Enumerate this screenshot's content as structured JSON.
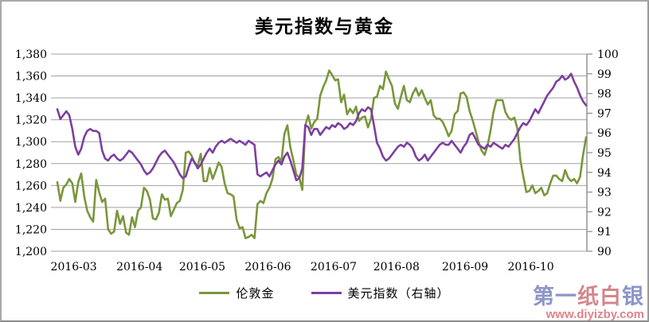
{
  "title": "美元指数与黄金",
  "legend": {
    "items": [
      {
        "label": "伦敦金",
        "color": "#7A963C"
      },
      {
        "label": "美元指数（右轴）",
        "color": "#7D3F9E"
      }
    ]
  },
  "watermark": {
    "brand_chars": [
      {
        "ch": "第",
        "color": "#8e95c9"
      },
      {
        "ch": "一",
        "color": "#8e95c9"
      },
      {
        "ch": "纸",
        "color": "#d4868b"
      },
      {
        "ch": "白",
        "color": "#d4868b"
      },
      {
        "ch": "银",
        "color": "#8e95c9"
      }
    ],
    "url": "www.diyizby.com",
    "url_color": "#e0828a"
  },
  "chart_data": {
    "type": "line",
    "title": "美元指数与黄金",
    "grid": true,
    "legend_position": "bottom",
    "gridline_color": "#a0a0a0",
    "axis_line_color": "#8c8c8c",
    "x_tick_labels": [
      "2016-03",
      "2016-04",
      "2016-05",
      "2016-06",
      "2016-07",
      "2016-08",
      "2016-09",
      "2016-10"
    ],
    "month_start_indices": [
      0,
      22,
      43,
      65,
      87,
      108,
      131,
      153
    ],
    "left_axis": {
      "min": 1200,
      "max": 1380,
      "step": 20,
      "tick_values": [
        1380,
        1360,
        1340,
        1320,
        1300,
        1280,
        1260,
        1240,
        1220,
        1200
      ],
      "tick_labels": [
        "1,380",
        "1,360",
        "1,340",
        "1,320",
        "1,300",
        "1,280",
        "1,260",
        "1,240",
        "1,220",
        "1,200"
      ]
    },
    "right_axis": {
      "min": 90,
      "max": 100,
      "step": 1,
      "tick_values": [
        100,
        99,
        98,
        97,
        96,
        95,
        94,
        93,
        92,
        91,
        90
      ],
      "tick_labels": [
        "100",
        "99",
        "98",
        "97",
        "96",
        "95",
        "94",
        "93",
        "92",
        "91",
        "90"
      ]
    },
    "series": [
      {
        "name": "伦敦金",
        "axis": "left",
        "color": "#7A963C",
        "values": [
          1263,
          1246,
          1258,
          1261,
          1266,
          1262,
          1245,
          1263,
          1271,
          1250,
          1237,
          1231,
          1227,
          1265,
          1254,
          1245,
          1248,
          1220,
          1216,
          1218,
          1237,
          1225,
          1232,
          1217,
          1215,
          1231,
          1222,
          1237,
          1240,
          1258,
          1255,
          1247,
          1230,
          1229,
          1235,
          1252,
          1247,
          1248,
          1232,
          1238,
          1244,
          1246,
          1256,
          1290,
          1291,
          1287,
          1280,
          1278,
          1289,
          1264,
          1264,
          1276,
          1266,
          1273,
          1281,
          1277,
          1262,
          1253,
          1252,
          1250,
          1229,
          1221,
          1222,
          1212,
          1213,
          1215,
          1212,
          1243,
          1246,
          1244,
          1253,
          1258,
          1266,
          1284,
          1286,
          1282,
          1307,
          1315,
          1295,
          1283,
          1270,
          1267,
          1256,
          1315,
          1324,
          1312,
          1318,
          1321,
          1342,
          1350,
          1356,
          1365,
          1361,
          1356,
          1357,
          1336,
          1343,
          1325,
          1330,
          1326,
          1332,
          1319,
          1322,
          1323,
          1313,
          1321,
          1340,
          1341,
          1351,
          1348,
          1364,
          1357,
          1351,
          1335,
          1330,
          1341,
          1351,
          1338,
          1336,
          1344,
          1349,
          1342,
          1347,
          1340,
          1334,
          1338,
          1324,
          1321,
          1321,
          1318,
          1312,
          1305,
          1310,
          1325,
          1328,
          1344,
          1345,
          1341,
          1328,
          1320,
          1310,
          1300,
          1292,
          1288,
          1296,
          1310,
          1327,
          1338,
          1338,
          1338,
          1327,
          1322,
          1320,
          1322,
          1312,
          1283,
          1268,
          1254,
          1255,
          1260,
          1253,
          1255,
          1258,
          1251,
          1253,
          1262,
          1269,
          1269,
          1266,
          1264,
          1274,
          1267,
          1264,
          1266,
          1262,
          1268,
          1288,
          1304
        ]
      },
      {
        "name": "美元指数（右轴）",
        "axis": "right",
        "color": "#7D3F9E",
        "values": [
          97.2,
          96.7,
          96.9,
          97.1,
          96.9,
          96.2,
          95.3,
          94.9,
          95.2,
          95.8,
          96.1,
          96.2,
          96.1,
          96.1,
          96.0,
          95.1,
          94.7,
          94.6,
          94.8,
          94.9,
          94.7,
          94.6,
          94.7,
          94.9,
          95.1,
          95.0,
          94.8,
          94.6,
          94.4,
          94.1,
          93.9,
          94.0,
          94.2,
          94.5,
          94.8,
          95.0,
          95.1,
          94.9,
          94.7,
          94.5,
          94.2,
          93.9,
          93.7,
          93.8,
          94.3,
          94.7,
          94.5,
          94.2,
          94.4,
          94.7,
          95.0,
          95.2,
          95.0,
          95.3,
          95.5,
          95.6,
          95.5,
          95.6,
          95.7,
          95.6,
          95.5,
          95.6,
          95.5,
          95.4,
          95.6,
          95.5,
          95.4,
          93.9,
          93.8,
          93.9,
          94.0,
          93.8,
          94.1,
          94.4,
          94.6,
          94.4,
          94.8,
          95.0,
          94.6,
          94.1,
          93.6,
          93.7,
          94.2,
          96.4,
          96.3,
          95.9,
          96.2,
          96.2,
          95.9,
          96.1,
          96.3,
          96.2,
          96.4,
          96.3,
          96.5,
          96.4,
          96.2,
          96.3,
          96.5,
          96.4,
          96.6,
          97.0,
          97.2,
          97.1,
          97.3,
          97.2,
          96.4,
          95.5,
          95.2,
          94.8,
          94.6,
          94.7,
          94.9,
          95.1,
          95.3,
          95.4,
          95.3,
          95.5,
          95.4,
          95.2,
          94.8,
          94.6,
          94.7,
          94.9,
          94.6,
          94.8,
          95.0,
          95.2,
          95.4,
          95.5,
          95.4,
          95.4,
          95.6,
          95.4,
          95.2,
          95.0,
          95.3,
          95.5,
          95.9,
          96.0,
          95.7,
          95.4,
          95.3,
          95.2,
          95.4,
          95.3,
          95.5,
          95.4,
          95.3,
          95.2,
          95.4,
          95.3,
          95.5,
          95.7,
          96.0,
          96.3,
          96.5,
          96.4,
          96.6,
          96.9,
          97.2,
          97.0,
          97.3,
          97.6,
          97.9,
          98.1,
          98.3,
          98.6,
          98.7,
          98.9,
          98.7,
          98.8,
          99.0,
          98.6,
          98.3,
          97.9,
          97.6,
          97.4
        ]
      }
    ]
  }
}
